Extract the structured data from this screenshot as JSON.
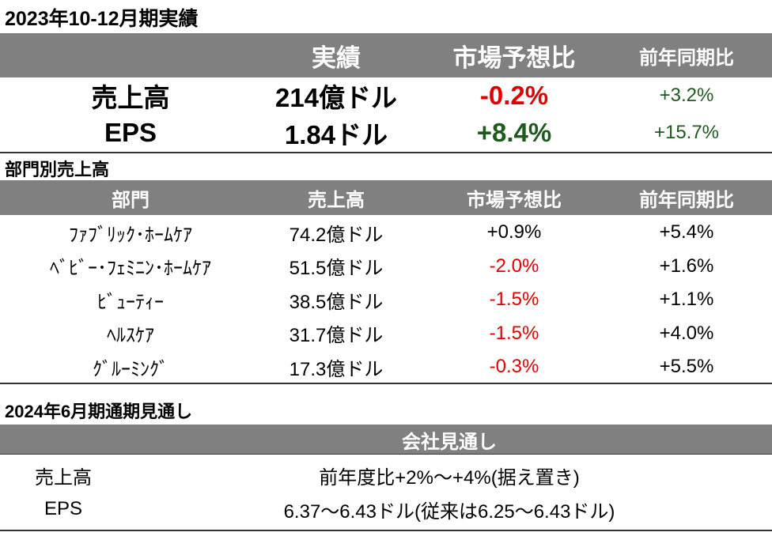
{
  "results": {
    "title": "2023年10-12月期実績",
    "headers": [
      "実績",
      "市場予想比",
      "前年同期比"
    ],
    "rows": [
      [
        "売上高",
        "214億ドル",
        "-0.2%",
        "+3.2%"
      ],
      [
        "EPS",
        "1.84ドル",
        "+8.4%",
        "+15.7%"
      ]
    ]
  },
  "segments": {
    "title": "部門別売上高",
    "headers": [
      "部門",
      "売上高",
      "市場予想比",
      "前年同期比"
    ],
    "rows": [
      [
        "ﾌｧﾌﾞﾘｯｸ･ﾎｰﾑｹｱ",
        "74.2億ドル",
        "+0.9%",
        "+5.4%"
      ],
      [
        "ﾍﾞﾋﾞｰ･ﾌｪﾐﾆﾝ･ﾎｰﾑｹｱ",
        "51.5億ドル",
        "-2.0%",
        "+1.6%"
      ],
      [
        "ﾋﾞｭｰﾃｨｰ",
        "38.5億ドル",
        "-1.5%",
        "+1.1%"
      ],
      [
        "ﾍﾙｽｹｱ",
        "31.7億ドル",
        "-1.5%",
        "+4.0%"
      ],
      [
        "ｸﾞﾙｰﾐﾝｸﾞ",
        "17.3億ドル",
        "-0.3%",
        "+5.5%"
      ]
    ]
  },
  "outlook": {
    "title": "2024年6月期通期見通し",
    "header": "会社見通し",
    "rows": [
      [
        "売上高",
        "前年度比+2%～+4%(据え置き)"
      ],
      [
        "EPS",
        "6.37～6.43ドル(従来は6.25～6.43ドル)"
      ]
    ]
  }
}
